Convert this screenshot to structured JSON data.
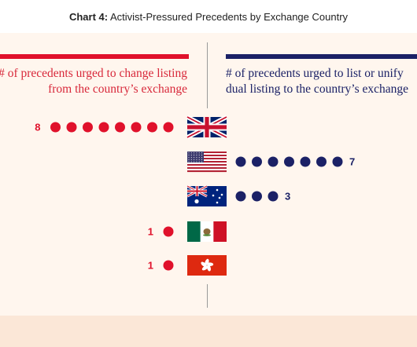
{
  "header": {
    "title_prefix": "Chart 4:",
    "title_text": "Activist-Pressured Precedents by Exchange Country"
  },
  "columns": {
    "left_title_lines": [
      "# of precedents urged to change listing",
      "from the country’s exchange"
    ],
    "right_title_lines": [
      "# of precedents urged to list or unify",
      "dual listing to the country’s exchange"
    ]
  },
  "colors": {
    "red": "#e0112b",
    "navy": "#1b2166",
    "panel": "#fff6ee",
    "background": "#fdf1e6"
  },
  "chart_data": {
    "type": "bar",
    "categories": [
      "united-kingdom-flag",
      "united-states-flag",
      "australia-flag",
      "mexico-flag",
      "hong-kong-flag"
    ],
    "series": [
      {
        "name": "# of precedents urged to change listing from the country’s exchange",
        "values": [
          8,
          0,
          0,
          1,
          1
        ]
      },
      {
        "name": "# of precedents urged to list or unify dual listing to the country’s exchange",
        "values": [
          0,
          7,
          3,
          0,
          0
        ]
      }
    ],
    "title": "Activist-Pressured Precedents by Exchange Country",
    "xlabel": "",
    "ylabel": ""
  }
}
